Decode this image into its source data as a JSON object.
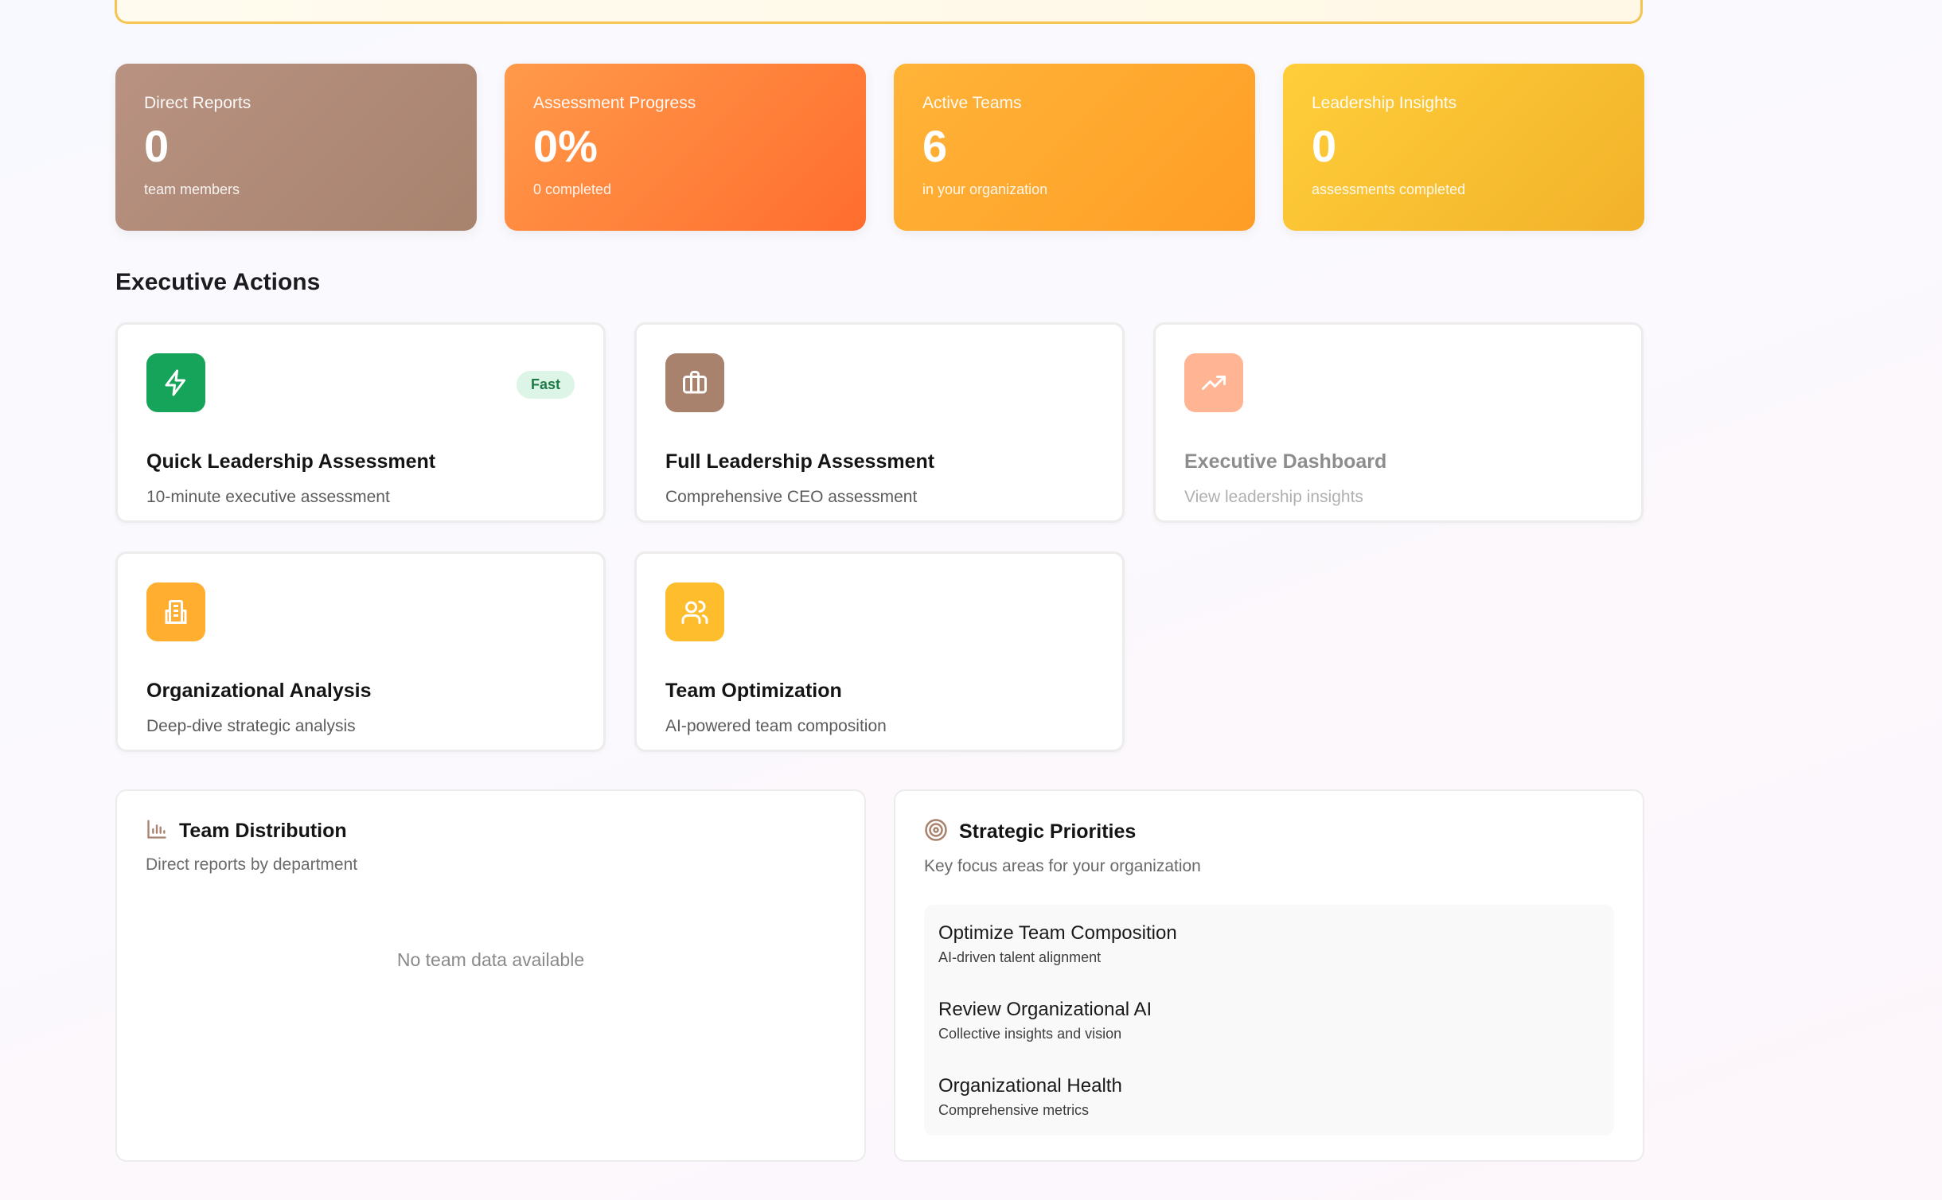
{
  "stats": [
    {
      "label": "Direct Reports",
      "value": "0",
      "sub": "team members"
    },
    {
      "label": "Assessment Progress",
      "value": "0%",
      "sub": "0 completed"
    },
    {
      "label": "Active Teams",
      "value": "6",
      "sub": "in your organization"
    },
    {
      "label": "Leadership Insights",
      "value": "0",
      "sub": "assessments completed"
    }
  ],
  "section_title": "Executive Actions",
  "actions": [
    {
      "title": "Quick Leadership Assessment",
      "desc": "10-minute executive assessment",
      "badge": "Fast",
      "icon": "zap-icon",
      "color": "#16a35a"
    },
    {
      "title": "Full Leadership Assessment",
      "desc": "Comprehensive CEO assessment",
      "icon": "briefcase-icon",
      "color": "#a8826d"
    },
    {
      "title": "Executive Dashboard",
      "desc": "View leadership insights",
      "icon": "trending-up-icon",
      "color": "#ffb494"
    },
    {
      "title": "Organizational Analysis",
      "desc": "Deep-dive strategic analysis",
      "icon": "building-icon",
      "color": "#ffae30"
    },
    {
      "title": "Team Optimization",
      "desc": "AI-powered team composition",
      "icon": "users-icon",
      "color": "#fdbd2c"
    }
  ],
  "team_distribution": {
    "title": "Team Distribution",
    "subtitle": "Direct reports by department",
    "empty": "No team data available",
    "icon": "bar-chart-icon"
  },
  "strategic_priorities": {
    "title": "Strategic Priorities",
    "subtitle": "Key focus areas for your organization",
    "icon": "target-icon",
    "items": [
      {
        "name": "Optimize Team Composition",
        "desc": "AI-driven talent alignment"
      },
      {
        "name": "Review Organizational AI",
        "desc": "Collective insights and vision"
      },
      {
        "name": "Organizational Health",
        "desc": "Comprehensive metrics"
      }
    ]
  }
}
